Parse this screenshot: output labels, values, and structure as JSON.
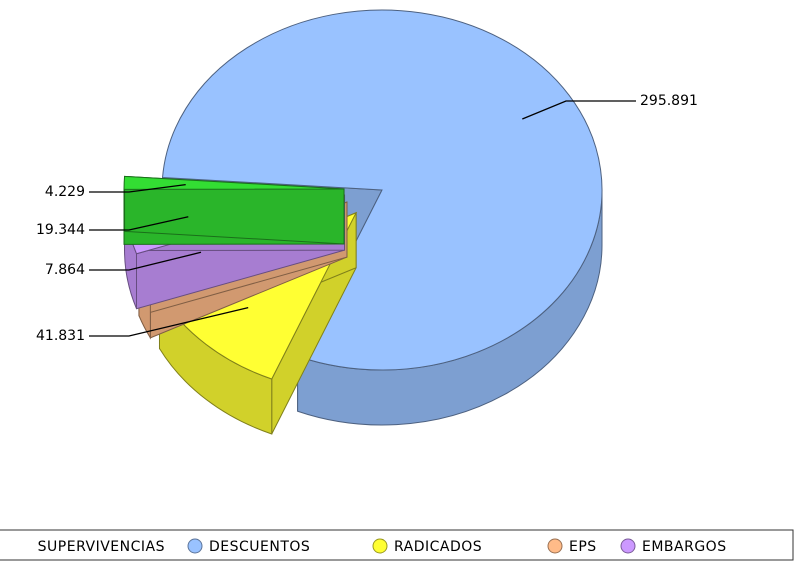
{
  "chart_data": {
    "type": "pie3d",
    "categories": [
      "SUPERVIVENCIAS",
      "DESCUENTOS",
      "RADICADOS",
      "EPS",
      "EMBARGOS"
    ],
    "values": [
      4229,
      295891,
      41831,
      7864,
      19344
    ],
    "value_labels": [
      "4.229",
      "295.891",
      "41.831",
      "7.864",
      "19.344"
    ],
    "colors": [
      "#33dd33",
      "#99c2ff",
      "#ffff33",
      "#ffbb88",
      "#cc99ff"
    ],
    "legend": "bottom"
  }
}
